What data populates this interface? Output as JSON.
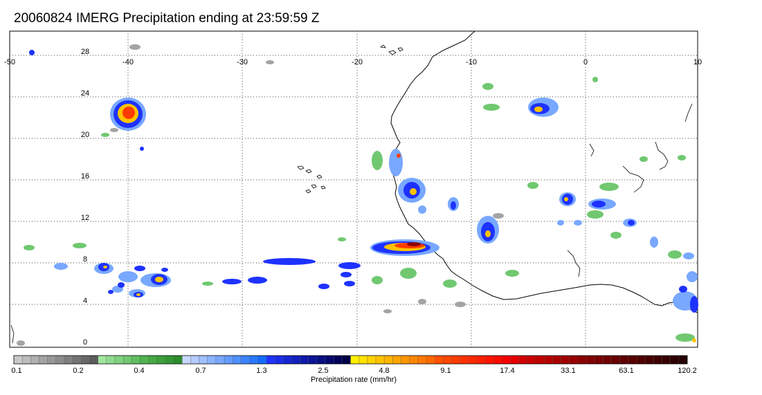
{
  "title": "20060824 IMERG Precipitation ending at 23:59:59 Z",
  "map": {
    "lon_ticks": [
      "-50",
      "-40",
      "-30",
      "-20",
      "-10",
      "0",
      "10"
    ],
    "lat_ticks": [
      "28",
      "24",
      "20",
      "16",
      "12",
      "8",
      "4",
      "0"
    ],
    "lon_range": [
      -50,
      10
    ],
    "lat_range": [
      -0.5,
      30.5
    ],
    "gridlines": "dotted"
  },
  "colorbar": {
    "title": "Precipitation rate (mm/hr)",
    "labels": [
      "0.1",
      "0.2",
      "0.4",
      "0.7",
      "1.3",
      "2.5",
      "4.8",
      "9.1",
      "17.4",
      "33.1",
      "63.1",
      "120.2"
    ],
    "colors": [
      "#c8c8c8",
      "#bcbcbc",
      "#b0b0b0",
      "#a4a4a4",
      "#989898",
      "#8c8c8c",
      "#808080",
      "#747474",
      "#686868",
      "#5c5c5c",
      "#a0e6a0",
      "#90dc90",
      "#80d280",
      "#70c870",
      "#60be60",
      "#50b450",
      "#44aa44",
      "#3ca03c",
      "#349634",
      "#2c8c2c",
      "#c8d8ff",
      "#b4ccff",
      "#a0c0ff",
      "#8cb4ff",
      "#78a8ff",
      "#649cff",
      "#5090ff",
      "#3c84ff",
      "#2878ff",
      "#146cff",
      "#1e32ff",
      "#1a2ce6",
      "#1626d2",
      "#1220be",
      "#0e1aaa",
      "#0a1496",
      "#060e82",
      "#04086e",
      "#02045a",
      "#000046",
      "#fff000",
      "#ffe100",
      "#ffd200",
      "#ffc300",
      "#ffb400",
      "#ffa500",
      "#ff9600",
      "#ff8700",
      "#ff7800",
      "#ff6900",
      "#ff5000",
      "#ff4600",
      "#ff3c00",
      "#ff3200",
      "#ff2800",
      "#ff1e00",
      "#ff1400",
      "#ff0a00",
      "#f50000",
      "#e60000",
      "#d20000",
      "#c80000",
      "#be0000",
      "#b40000",
      "#aa0000",
      "#a00000",
      "#960000",
      "#8c0000",
      "#820000",
      "#780000",
      "#6e0000",
      "#660000",
      "#5e0000",
      "#560000",
      "#4e0000",
      "#460000",
      "#3e0000",
      "#360000",
      "#2e0000",
      "#260000"
    ]
  }
}
